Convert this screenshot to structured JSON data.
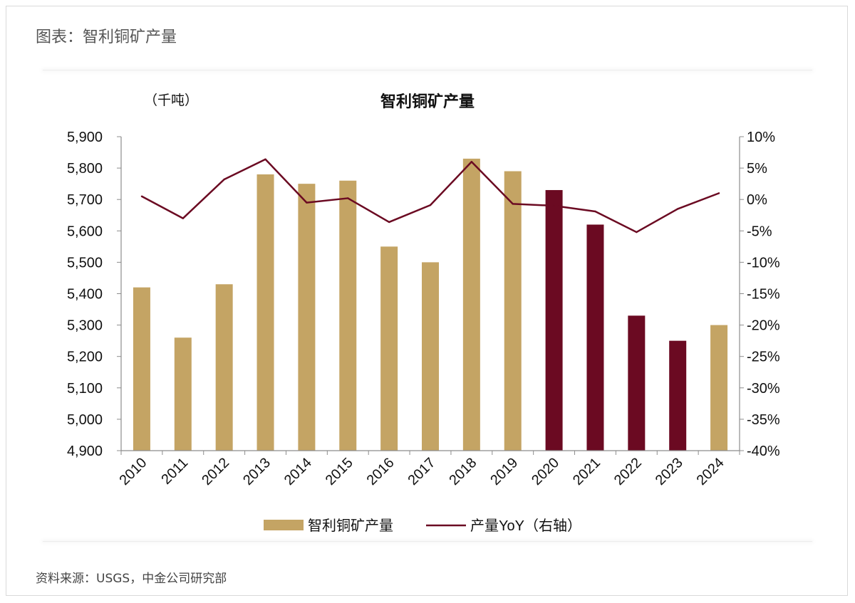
{
  "figure": {
    "title": "图表：智利铜矿产量",
    "source": "资料来源：USGS，中金公司研究部"
  },
  "colors": {
    "bar_normal": "#c4a464",
    "bar_highlight": "#6b0a22",
    "line": "#6b0a22",
    "axis": "#8c8c8c"
  },
  "chart_data": {
    "type": "bar",
    "title": "智利铜矿产量",
    "y_unit_label": "（千吨）",
    "categories": [
      "2010",
      "2011",
      "2012",
      "2013",
      "2014",
      "2015",
      "2016",
      "2017",
      "2018",
      "2019",
      "2020",
      "2021",
      "2022",
      "2023",
      "2024"
    ],
    "series": [
      {
        "name": "智利铜矿产量",
        "type": "bar",
        "axis": "left",
        "values": [
          5420,
          5260,
          5430,
          5780,
          5750,
          5760,
          5550,
          5500,
          5830,
          5790,
          5730,
          5620,
          5330,
          5250,
          5300
        ],
        "highlight_categories": [
          "2020",
          "2021",
          "2022",
          "2023"
        ]
      },
      {
        "name": "产量YoY（右轴）",
        "type": "line",
        "axis": "right",
        "values": [
          0.5,
          -3.0,
          3.2,
          6.4,
          -0.5,
          0.2,
          -3.6,
          -0.9,
          6.0,
          -0.7,
          -1.0,
          -1.9,
          -5.2,
          -1.5,
          1.0
        ]
      }
    ],
    "y_left": {
      "min": 4900,
      "max": 5900,
      "step": 100,
      "tick_labels": [
        "4,900",
        "5,000",
        "5,100",
        "5,200",
        "5,300",
        "5,400",
        "5,500",
        "5,600",
        "5,700",
        "5,800",
        "5,900"
      ]
    },
    "y_right": {
      "min": -40,
      "max": 10,
      "step": 5,
      "tick_labels": [
        "-40%",
        "-35%",
        "-30%",
        "-25%",
        "-20%",
        "-15%",
        "-10%",
        "-5%",
        "0%",
        "5%",
        "10%"
      ]
    },
    "grid": false,
    "legend": {
      "position": "bottom",
      "entries": [
        "智利铜矿产量",
        "产量YoY（右轴）"
      ]
    }
  }
}
